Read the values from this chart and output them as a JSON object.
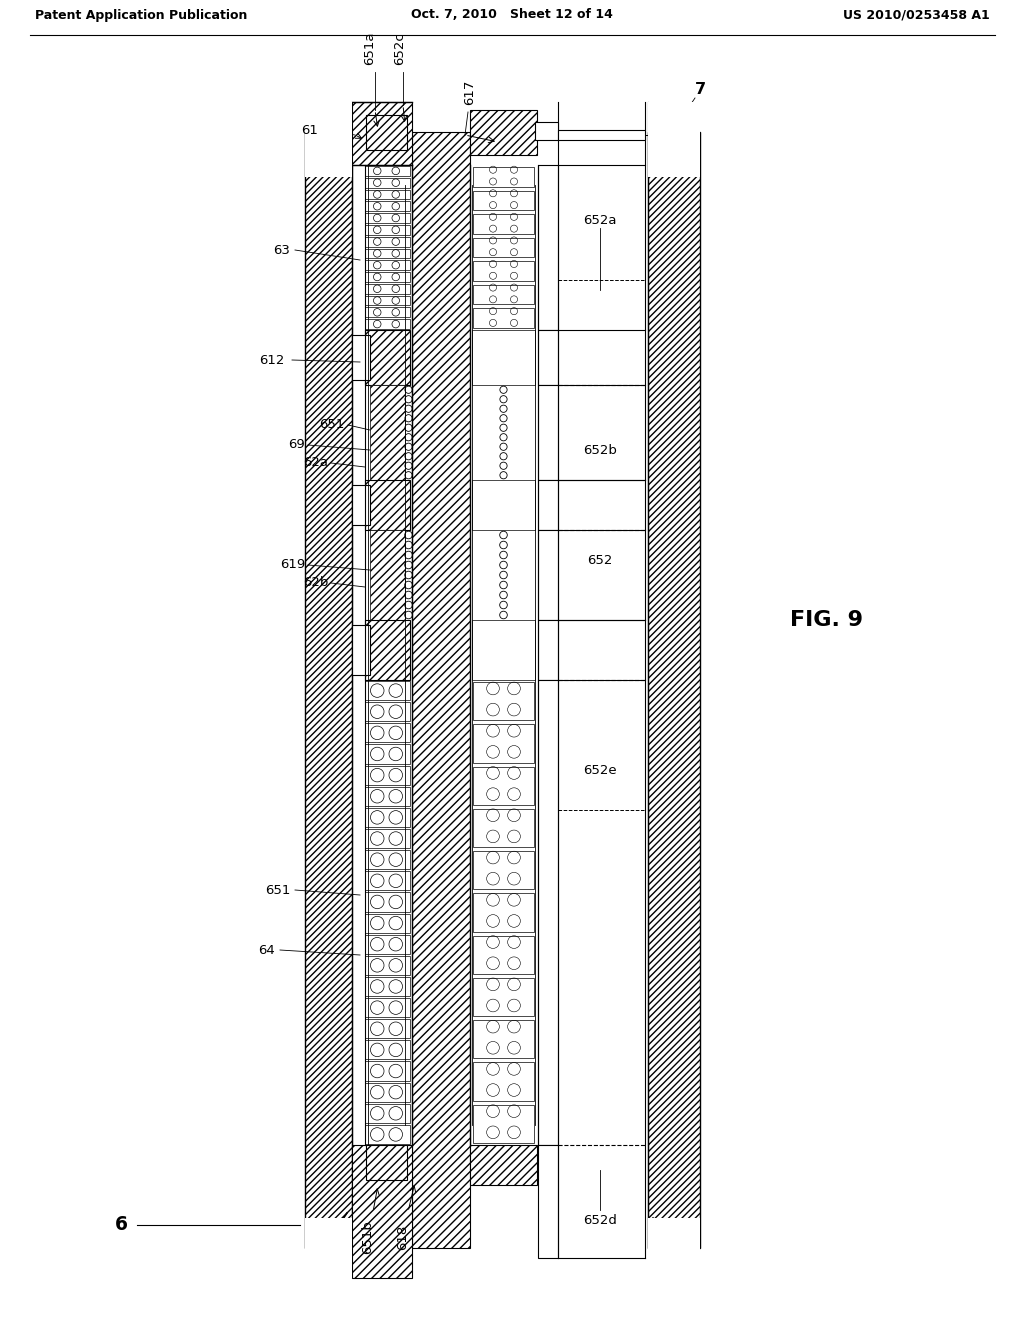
{
  "title_left": "Patent Application Publication",
  "title_center": "Oct. 7, 2010   Sheet 12 of 14",
  "title_right": "US 2010/0253458 A1",
  "fig_label": "FIG. 9",
  "background_color": "#ffffff",
  "line_color": "#000000",
  "label_fontsize": 9.5,
  "header_fontsize": 9
}
